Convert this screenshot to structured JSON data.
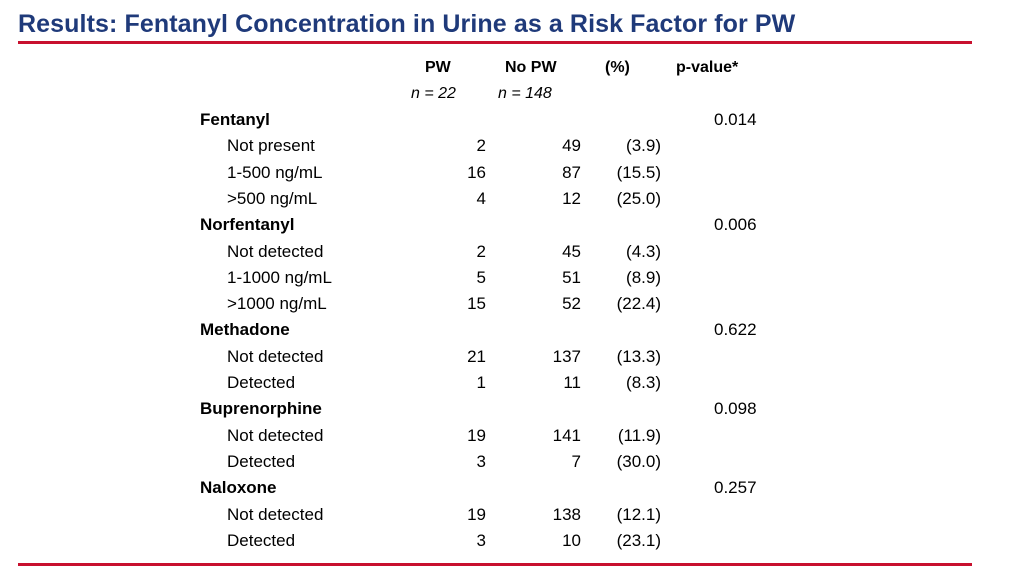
{
  "title": "Results: Fentanyl Concentration in Urine as a Risk Factor for PW",
  "colors": {
    "title": "#1f3a7a",
    "rule": "#c8102e",
    "text": "#000000"
  },
  "table": {
    "headers": {
      "pw": "PW",
      "no_pw": "No PW",
      "pct": "(%)",
      "pvalue": "p-value*"
    },
    "n": {
      "pw": "n = 22",
      "no_pw": "n = 148"
    },
    "rows": [
      {
        "type": "category",
        "label": "Fentanyl",
        "pw": "",
        "no_pw": "",
        "pct": "",
        "p": "0.014"
      },
      {
        "type": "sub",
        "label": "Not present",
        "pw": "2",
        "no_pw": "49",
        "pct": "(3.9)",
        "p": ""
      },
      {
        "type": "sub",
        "label": "1-500 ng/mL",
        "pw": "16",
        "no_pw": "87",
        "pct": "(15.5)",
        "p": ""
      },
      {
        "type": "sub",
        "label": ">500 ng/mL",
        "pw": "4",
        "no_pw": "12",
        "pct": "(25.0)",
        "p": ""
      },
      {
        "type": "category",
        "label": "Norfentanyl",
        "pw": "",
        "no_pw": "",
        "pct": "",
        "p": "0.006"
      },
      {
        "type": "sub",
        "label": "Not detected",
        "pw": "2",
        "no_pw": "45",
        "pct": "(4.3)",
        "p": ""
      },
      {
        "type": "sub",
        "label": "1-1000 ng/mL",
        "pw": "5",
        "no_pw": "51",
        "pct": "(8.9)",
        "p": ""
      },
      {
        "type": "sub",
        "label": ">1000 ng/mL",
        "pw": "15",
        "no_pw": "52",
        "pct": "(22.4)",
        "p": ""
      },
      {
        "type": "category",
        "label": "Methadone",
        "pw": "",
        "no_pw": "",
        "pct": "",
        "p": "0.622"
      },
      {
        "type": "sub",
        "label": "Not detected",
        "pw": "21",
        "no_pw": "137",
        "pct": "(13.3)",
        "p": ""
      },
      {
        "type": "sub",
        "label": "Detected",
        "pw": "1",
        "no_pw": "11",
        "pct": "(8.3)",
        "p": ""
      },
      {
        "type": "category",
        "label": "Buprenorphine",
        "pw": "",
        "no_pw": "",
        "pct": "",
        "p": "0.098"
      },
      {
        "type": "sub",
        "label": "Not detected",
        "pw": "19",
        "no_pw": "141",
        "pct": "(11.9)",
        "p": ""
      },
      {
        "type": "sub",
        "label": "Detected",
        "pw": "3",
        "no_pw": "7",
        "pct": "(30.0)",
        "p": ""
      },
      {
        "type": "category",
        "label": "Naloxone",
        "pw": "",
        "no_pw": "",
        "pct": "",
        "p": "0.257"
      },
      {
        "type": "sub",
        "label": "Not detected",
        "pw": "19",
        "no_pw": "138",
        "pct": "(12.1)",
        "p": ""
      },
      {
        "type": "sub",
        "label": "Detected",
        "pw": "3",
        "no_pw": "10",
        "pct": "(23.1)",
        "p": ""
      }
    ]
  }
}
